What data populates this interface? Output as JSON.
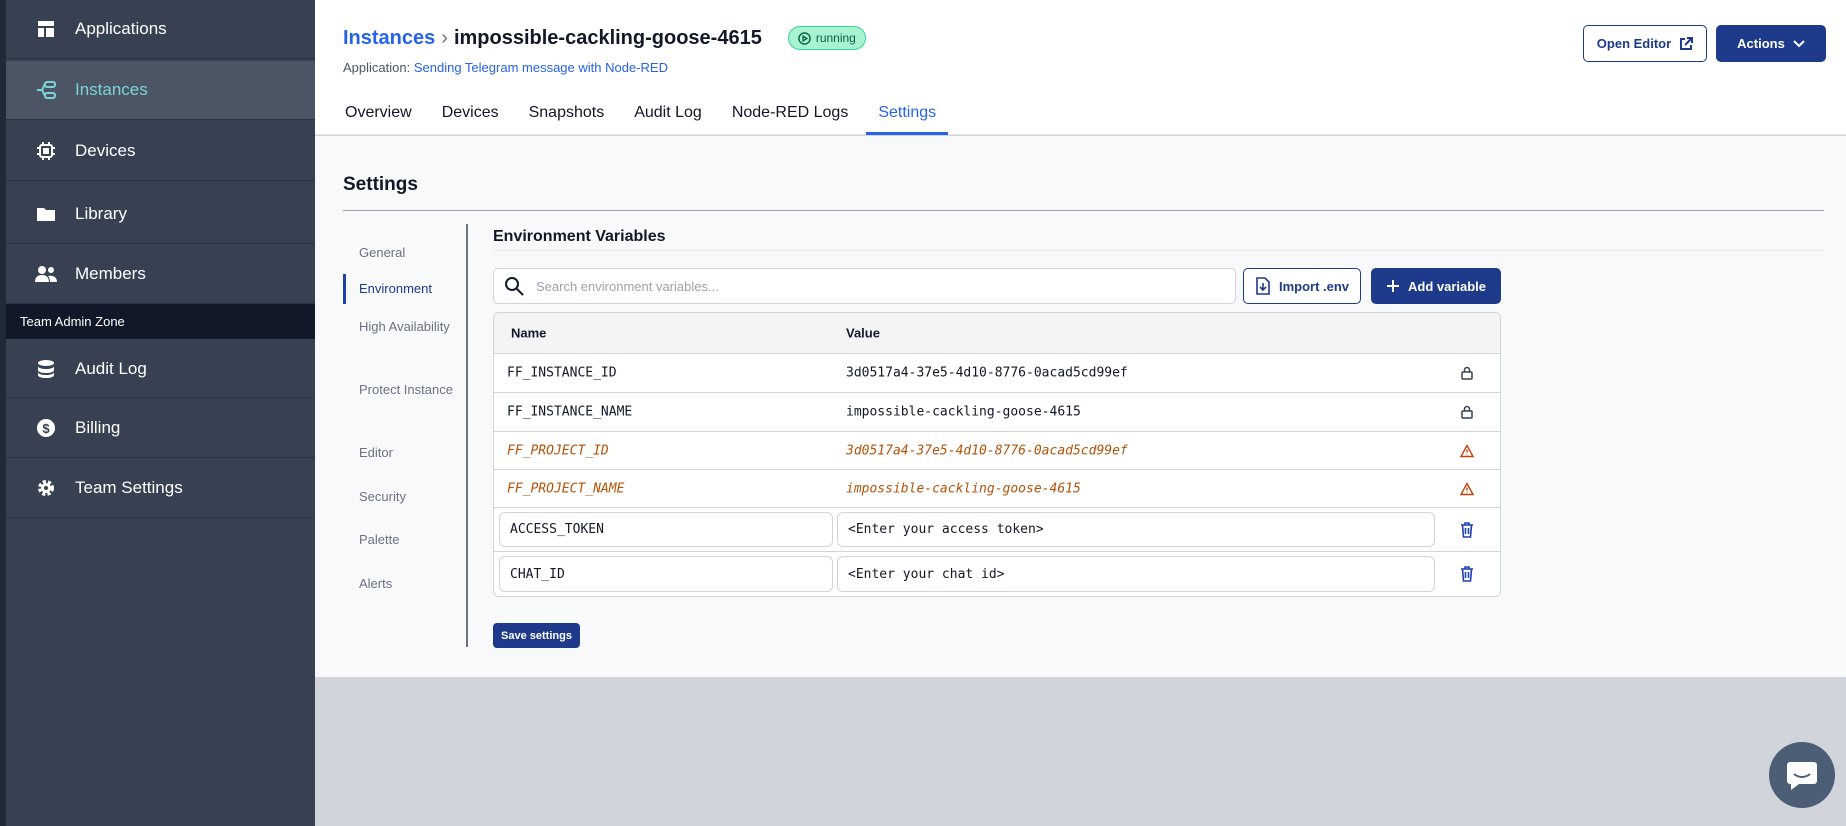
{
  "sidebar": {
    "items": [
      {
        "label": "Applications",
        "icon": "layout-icon"
      },
      {
        "label": "Instances",
        "icon": "instances-icon",
        "active": true
      },
      {
        "label": "Devices",
        "icon": "chip-icon"
      },
      {
        "label": "Library",
        "icon": "folder-icon"
      },
      {
        "label": "Members",
        "icon": "users-icon"
      },
      {
        "label": "Audit Log",
        "icon": "database-icon"
      },
      {
        "label": "Billing",
        "icon": "dollar-icon"
      },
      {
        "label": "Team Settings",
        "icon": "gear-icon"
      }
    ],
    "zone_label": "Team Admin Zone"
  },
  "header": {
    "breadcrumb_root": "Instances",
    "title": "impossible-cackling-goose-4615",
    "status": "running",
    "app_prefix": "Application:",
    "app_name": "Sending Telegram message with Node-RED",
    "open_editor": "Open Editor",
    "actions": "Actions",
    "tabs": [
      "Overview",
      "Devices",
      "Snapshots",
      "Audit Log",
      "Node-RED Logs",
      "Settings"
    ],
    "active_tab": "Settings"
  },
  "settings": {
    "title": "Settings",
    "nav": [
      "General",
      "Environment",
      "High Availability",
      "Protect Instance",
      "Editor",
      "Security",
      "Palette",
      "Alerts"
    ],
    "active_nav": "Environment",
    "env": {
      "title": "Environment Variables",
      "search_placeholder": "Search environment variables...",
      "import_label": "Import .env",
      "add_label": "Add variable",
      "columns": [
        "Name",
        "Value"
      ],
      "rows": [
        {
          "name": "FF_INSTANCE_ID",
          "value": "3d0517a4-37e5-4d10-8776-0acad5cd99ef",
          "icon": "lock-icon"
        },
        {
          "name": "FF_INSTANCE_NAME",
          "value": "impossible-cackling-goose-4615",
          "icon": "lock-icon"
        },
        {
          "name": "FF_PROJECT_ID",
          "value": "3d0517a4-37e5-4d10-8776-0acad5cd99ef",
          "icon": "warning-icon"
        },
        {
          "name": "FF_PROJECT_NAME",
          "value": "impossible-cackling-goose-4615",
          "icon": "warning-icon"
        },
        {
          "name": "ACCESS_TOKEN",
          "value": "<Enter your access token>",
          "icon": "trash-icon"
        },
        {
          "name": "CHAT_ID",
          "value": "<Enter your chat id>",
          "icon": "trash-icon"
        }
      ]
    },
    "save_label": "Save settings"
  },
  "colors": {
    "primary": "#1e3a8a",
    "link": "#2563eb",
    "warning": "#b45309",
    "sidebar": "#374151"
  }
}
